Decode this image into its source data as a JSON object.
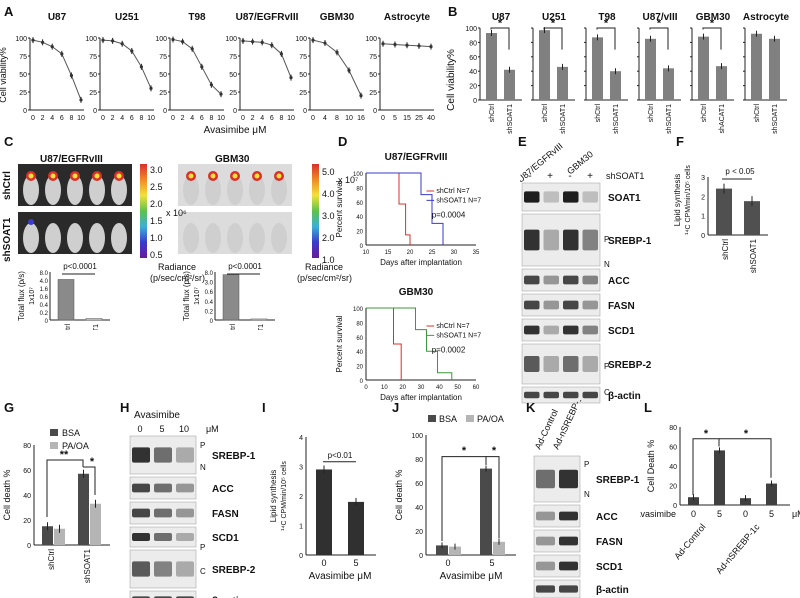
{
  "panels": {
    "A": {
      "label": "A",
      "xlabel": "Avasimibe μM",
      "ylabel": "Cell viability%",
      "charts": [
        {
          "title": "U87",
          "ticks": [
            "0",
            "2",
            "4",
            "6",
            "8",
            "10"
          ],
          "y": [
            97,
            94,
            88,
            78,
            48,
            14
          ]
        },
        {
          "title": "U251",
          "ticks": [
            "0",
            "2",
            "4",
            "6",
            "8",
            "10"
          ],
          "y": [
            97,
            96,
            92,
            82,
            60,
            30
          ]
        },
        {
          "title": "T98",
          "ticks": [
            "0",
            "2",
            "4",
            "6",
            "8",
            "10"
          ],
          "y": [
            98,
            95,
            85,
            60,
            35,
            22
          ]
        },
        {
          "title": "U87/EGFRvIII",
          "ticks": [
            "0",
            "2",
            "4",
            "6",
            "8",
            "10"
          ],
          "y": [
            96,
            95,
            94,
            90,
            78,
            45
          ]
        },
        {
          "title": "GBM30",
          "ticks": [
            "0",
            "4",
            "8",
            "10",
            "16"
          ],
          "y": [
            97,
            93,
            80,
            55,
            20
          ]
        },
        {
          "title": "Astrocyte",
          "ticks": [
            "0",
            "5",
            "15",
            "25",
            "40"
          ],
          "y": [
            92,
            91,
            90,
            89,
            88
          ]
        }
      ],
      "yticks": [
        "0",
        "25",
        "50",
        "75",
        "100"
      ]
    },
    "B": {
      "label": "B",
      "ylabel": "Cell viability%",
      "star": "*",
      "charts": [
        {
          "title": "U87",
          "cats": [
            "shCtrl",
            "shSOAT1"
          ],
          "vals": [
            93,
            42
          ],
          "sig": true
        },
        {
          "title": "U251",
          "cats": [
            "shCtrl",
            "shSOAT1"
          ],
          "vals": [
            97,
            46
          ],
          "sig": true
        },
        {
          "title": "T98",
          "cats": [
            "shCtrl",
            "shSOAT1"
          ],
          "vals": [
            87,
            40
          ],
          "sig": true
        },
        {
          "title": "U87/vIII",
          "cats": [
            "shCtrl",
            "shSOAT1"
          ],
          "vals": [
            85,
            44
          ],
          "sig": true
        },
        {
          "title": "GBM30",
          "cats": [
            "shCtrl",
            "shACAT1"
          ],
          "vals": [
            88,
            47
          ],
          "sig": true
        },
        {
          "title": "Astrocyte",
          "cats": [
            "shCtrl",
            "shSOAT1"
          ],
          "vals": [
            92,
            85
          ],
          "sig": false
        }
      ],
      "yticks": [
        "0",
        "20",
        "40",
        "60",
        "80",
        "100"
      ]
    },
    "C": {
      "label": "C",
      "left_title": "U87/EGFRvIII",
      "right_title": "GBM30",
      "row1": "shCtrl",
      "row2": "shSOAT1",
      "scale_left": [
        "3.0",
        "2.5",
        "2.0",
        "1.5",
        "1.0",
        "0.5"
      ],
      "scale_left_unit": "x 10⁶",
      "scale_right": [
        "5.0",
        "4.0",
        "3.0",
        "2.0",
        "1.0"
      ],
      "scale_right_unit": "x 10⁷",
      "radiance": "Radiance",
      "radiance_unit": "(p/sec/cm²/sr)",
      "bar_left": {
        "ylabel": "Total flux (p/s)",
        "yunit": "1x10⁷",
        "p": "p<0.0001",
        "cats": [
          "shCtrl",
          "shSOAT1"
        ],
        "ticks": [
          "0",
          "0.2",
          "0.4",
          "0.6",
          "1.6",
          "4.0",
          "8.0"
        ],
        "vals": [
          7.6,
          0.3
        ]
      },
      "bar_right": {
        "ylabel": "Total flux (p/s)",
        "yunit": "1x10⁷",
        "p": "p<0.0001",
        "cats": [
          "shCtrl",
          "shSOAT1"
        ],
        "ticks": [
          "0",
          "0.2",
          "0.4",
          "0.6",
          "3.0",
          "8.0"
        ],
        "vals": [
          8.5,
          0.2
        ]
      }
    },
    "D": {
      "label": "D",
      "charts": [
        {
          "title": "U87/EGFRvIII",
          "ylabel": "Percent survival",
          "xlabel": "Days after implantation",
          "xticks": [
            "10",
            "15",
            "20",
            "25",
            "30",
            "35"
          ],
          "yticks": [
            "0",
            "20",
            "40",
            "60",
            "80",
            "100"
          ],
          "legend": [
            "shCtrl  N=7",
            "shSOAT1 N=7"
          ],
          "p": "p=0.0004"
        },
        {
          "title": "GBM30",
          "ylabel": "Percent survival",
          "xlabel": "Days after implantation",
          "xticks": [
            "0",
            "10",
            "20",
            "30",
            "40",
            "50",
            "60"
          ],
          "yticks": [
            "0",
            "20",
            "40",
            "60",
            "80",
            "100"
          ],
          "legend": [
            "shCtrl  N=7",
            "shSOAT1 N=7"
          ],
          "p": "p=0.0002"
        }
      ]
    },
    "E": {
      "label": "E",
      "lanes": [
        "U87/EGFRvIII",
        "GBM30"
      ],
      "signs": [
        "-",
        "+",
        "-",
        "+"
      ],
      "treat": "shSOAT1",
      "proteins": [
        "SOAT1",
        "SREBP-1",
        "ACC",
        "FASN",
        "SCD1",
        "SREBP-2",
        "β-actin"
      ],
      "marks": [
        "P",
        "N",
        "P",
        "C"
      ]
    },
    "F": {
      "label": "F",
      "ylabel": "Lipid synthesis",
      "yunit": "¹⁴C CPM/min/10⁵ cells",
      "p": "p < 0.05",
      "cats": [
        "shCtrl",
        "shSOAT1"
      ],
      "vals": [
        2.4,
        1.75
      ],
      "yticks": [
        "0",
        "1",
        "2",
        "3"
      ]
    },
    "G": {
      "label": "G",
      "ylabel": "Cell death %",
      "legend": [
        "BSA",
        "PA/OA"
      ],
      "cats": [
        "shCtrl",
        "shSOAT1"
      ],
      "series": [
        {
          "name": "BSA",
          "values": [
            15,
            57
          ]
        },
        {
          "name": "PA/OA",
          "values": [
            13,
            33
          ]
        }
      ],
      "stars": [
        "**",
        "*"
      ],
      "yticks": [
        "0",
        "20",
        "40",
        "60",
        "80"
      ]
    },
    "H": {
      "label": "H",
      "title": "Avasimibe",
      "doses": [
        "0",
        "5",
        "10"
      ],
      "unit": "μM",
      "proteins": [
        "SREBP-1",
        "ACC",
        "FASN",
        "SCD1",
        "SREBP-2",
        "β-actin"
      ],
      "marks": [
        "P",
        "N",
        "P",
        "C"
      ]
    },
    "I": {
      "label": "I",
      "ylabel": "Lipid synthesis",
      "yunit": "¹⁴C CPM/min/10⁵ cells",
      "p": "p<0.01",
      "xlabel": "Avasimibe μM",
      "cats": [
        "0",
        "5"
      ],
      "vals": [
        2.9,
        1.8
      ],
      "yticks": [
        "0",
        "1",
        "2",
        "3",
        "4"
      ]
    },
    "J": {
      "label": "J",
      "ylabel": "Cell death %",
      "xlabel": "Avasimibe μM",
      "legend": [
        "BSA",
        "PA/OA"
      ],
      "cats": [
        "0",
        "5"
      ],
      "series": [
        {
          "name": "BSA",
          "values": [
            8,
            72
          ]
        },
        {
          "name": "PA/OA",
          "values": [
            7,
            11
          ]
        }
      ],
      "stars": [
        "*",
        "*"
      ],
      "yticks": [
        "0",
        "20",
        "40",
        "60",
        "80",
        "100"
      ]
    },
    "K": {
      "label": "K",
      "lanes": [
        "Ad-Control",
        "Ad-nSREBP-1c"
      ],
      "proteins": [
        "SREBP-1",
        "ACC",
        "FASN",
        "SCD1",
        "β-actin"
      ],
      "marks": [
        "P",
        "N"
      ]
    },
    "L": {
      "label": "L",
      "ylabel": "Cell Death %",
      "xrow": "Avasimibe",
      "cats": [
        "0",
        "5",
        "0",
        "5"
      ],
      "unit": "μM",
      "groups": [
        "Ad-Control",
        "Ad-nSREBP-1c"
      ],
      "vals": [
        8,
        56,
        7,
        22
      ],
      "stars": [
        "*",
        "*"
      ],
      "yticks": [
        "0",
        "20",
        "40",
        "60",
        "80"
      ]
    }
  },
  "chart_data": [
    {
      "type": "line",
      "title": "U87",
      "x": [
        0,
        2,
        4,
        6,
        8,
        10
      ],
      "y": [
        97,
        94,
        88,
        78,
        48,
        14
      ],
      "xlabel": "Avasimibe μM",
      "ylabel": "Cell viability%",
      "ylim": [
        0,
        100
      ]
    },
    {
      "type": "line",
      "title": "U251",
      "x": [
        0,
        2,
        4,
        6,
        8,
        10
      ],
      "y": [
        97,
        96,
        92,
        82,
        60,
        30
      ],
      "ylim": [
        0,
        100
      ]
    },
    {
      "type": "line",
      "title": "T98",
      "x": [
        0,
        2,
        4,
        6,
        8,
        10
      ],
      "y": [
        98,
        95,
        85,
        60,
        35,
        22
      ],
      "ylim": [
        0,
        100
      ]
    },
    {
      "type": "line",
      "title": "U87/EGFRvIII",
      "x": [
        0,
        2,
        4,
        6,
        8,
        10
      ],
      "y": [
        96,
        95,
        94,
        90,
        78,
        45
      ],
      "ylim": [
        0,
        100
      ]
    },
    {
      "type": "line",
      "title": "GBM30",
      "x": [
        0,
        4,
        8,
        10,
        16
      ],
      "y": [
        97,
        93,
        80,
        55,
        20
      ],
      "ylim": [
        0,
        100
      ]
    },
    {
      "type": "line",
      "title": "Astrocyte",
      "x": [
        0,
        5,
        15,
        25,
        40
      ],
      "y": [
        92,
        91,
        90,
        89,
        88
      ],
      "ylim": [
        0,
        100
      ]
    },
    {
      "type": "bar",
      "title": "U87",
      "categories": [
        "shCtrl",
        "shSOAT1"
      ],
      "values": [
        93,
        42
      ],
      "ylabel": "Cell viability%",
      "ylim": [
        0,
        100
      ]
    },
    {
      "type": "bar",
      "title": "U251",
      "categories": [
        "shCtrl",
        "shSOAT1"
      ],
      "values": [
        97,
        46
      ],
      "ylim": [
        0,
        100
      ]
    },
    {
      "type": "bar",
      "title": "T98",
      "categories": [
        "shCtrl",
        "shSOAT1"
      ],
      "values": [
        87,
        40
      ],
      "ylim": [
        0,
        100
      ]
    },
    {
      "type": "bar",
      "title": "U87/vIII",
      "categories": [
        "shCtrl",
        "shSOAT1"
      ],
      "values": [
        85,
        44
      ],
      "ylim": [
        0,
        100
      ]
    },
    {
      "type": "bar",
      "title": "GBM30",
      "categories": [
        "shCtrl",
        "shACAT1"
      ],
      "values": [
        88,
        47
      ],
      "ylim": [
        0,
        100
      ]
    },
    {
      "type": "bar",
      "title": "Astrocyte",
      "categories": [
        "shCtrl",
        "shSOAT1"
      ],
      "values": [
        92,
        85
      ],
      "ylim": [
        0,
        100
      ]
    },
    {
      "type": "bar",
      "categories": [
        "shCtrl",
        "shSOAT1"
      ],
      "values": [
        2.4,
        1.75
      ],
      "ylabel": "Lipid synthesis",
      "ylim": [
        0,
        3
      ]
    },
    {
      "type": "bar",
      "categories": [
        "shCtrl",
        "shSOAT1"
      ],
      "series": [
        {
          "name": "BSA",
          "values": [
            15,
            57
          ]
        },
        {
          "name": "PA/OA",
          "values": [
            13,
            33
          ]
        }
      ],
      "ylabel": "Cell death %",
      "ylim": [
        0,
        80
      ]
    },
    {
      "type": "bar",
      "categories": [
        "0",
        "5"
      ],
      "values": [
        2.9,
        1.8
      ],
      "xlabel": "Avasimibe μM",
      "ylabel": "Lipid synthesis",
      "ylim": [
        0,
        4
      ]
    },
    {
      "type": "bar",
      "categories": [
        "0",
        "5"
      ],
      "series": [
        {
          "name": "BSA",
          "values": [
            8,
            72
          ]
        },
        {
          "name": "PA/OA",
          "values": [
            7,
            11
          ]
        }
      ],
      "xlabel": "Avasimibe μM",
      "ylabel": "Cell death %",
      "ylim": [
        0,
        100
      ]
    },
    {
      "type": "bar",
      "categories": [
        "0",
        "5",
        "0",
        "5"
      ],
      "values": [
        8,
        56,
        7,
        22
      ],
      "ylabel": "Cell Death %",
      "ylim": [
        0,
        80
      ]
    }
  ],
  "colors": {
    "dark": "#4a4a4a",
    "light": "#b5b5b5",
    "red": "#d9302a",
    "blue": "#3a3acc",
    "green": "#3a9a3a"
  }
}
